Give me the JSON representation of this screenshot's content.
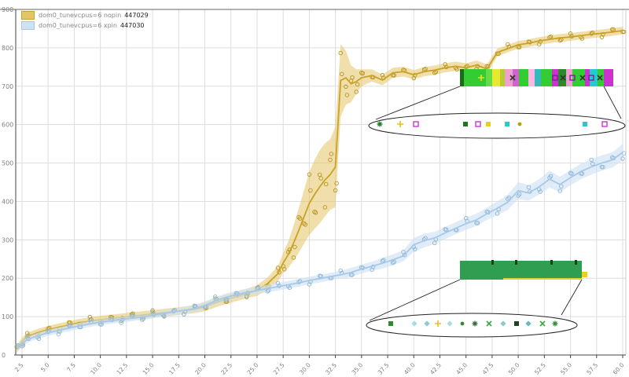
{
  "legend": {
    "items": [
      {
        "label": "dom0_tunevcpus=6 nopin",
        "value": "447029"
      },
      {
        "label": "dom0_tunevcpus=6 xpin",
        "value": "447030"
      }
    ]
  },
  "chart_data": {
    "type": "line",
    "title": "",
    "xlabel": "",
    "ylabel": "",
    "xlim": [
      1.9,
      60.3
    ],
    "ylim": [
      0,
      900
    ],
    "grid": true,
    "grid_color": "#dddddd",
    "axis_color": "#444444",
    "tick_label_color": "#808080",
    "x_ticks": [
      2.5,
      5.0,
      7.5,
      10.0,
      12.5,
      15.0,
      17.5,
      20.0,
      22.5,
      25.0,
      27.5,
      30.0,
      32.5,
      35.0,
      37.5,
      40.0,
      42.5,
      45.0,
      47.5,
      50.0,
      52.5,
      55.0,
      57.5,
      60.0
    ],
    "x_tick_labels": [
      "2.5",
      "5.0",
      "7.5",
      "10.0",
      "12.5",
      "15.0",
      "17.5",
      "20.0",
      "22.5",
      "25.0",
      "27.5",
      "30.0",
      "32.5",
      "35.0",
      "37.5",
      "40.0",
      "42.5",
      "45.0",
      "47.5",
      "50.0",
      "52.5",
      "55.0",
      "57.5",
      "60.0"
    ],
    "y_ticks": [
      0,
      100,
      200,
      300,
      400,
      500,
      600,
      700,
      800,
      900
    ],
    "marker_jitter": [
      5,
      -7,
      9,
      -4,
      2,
      -10,
      7,
      -3,
      11,
      -6,
      4,
      -9
    ],
    "series": [
      {
        "name": "dom0_tunevcpus=6 nopin",
        "id": "447029",
        "color": "#c9a227",
        "marker_color": "#b8931f",
        "band_color": "#e3c565",
        "band_opacity": 0.55,
        "x": [
          2,
          2.5,
          3,
          4,
          5,
          6,
          7,
          8,
          9,
          10,
          11,
          12,
          13,
          14,
          15,
          16,
          17,
          18,
          19,
          20,
          21,
          22,
          23,
          24,
          25,
          26,
          27,
          27.5,
          28,
          28.5,
          29,
          29.5,
          30,
          30.5,
          31,
          31.5,
          32,
          32.5,
          33,
          33.5,
          34,
          34.5,
          35,
          36,
          37,
          38,
          39,
          40,
          41,
          42,
          43,
          44,
          45,
          46,
          47,
          48,
          49,
          50,
          51,
          52,
          53,
          54,
          55,
          56,
          57,
          58,
          59,
          60
        ],
        "y": [
          15,
          35,
          48,
          58,
          66,
          72,
          78,
          84,
          88,
          92,
          95,
          98,
          101,
          104,
          107,
          110,
          113,
          116,
          119,
          126,
          136,
          145,
          152,
          160,
          168,
          186,
          212,
          240,
          262,
          292,
          325,
          360,
          395,
          418,
          438,
          456,
          470,
          490,
          715,
          722,
          706,
          712,
          722,
          728,
          716,
          735,
          738,
          730,
          738,
          742,
          748,
          752,
          748,
          755,
          745,
          788,
          798,
          808,
          812,
          818,
          822,
          826,
          828,
          832,
          835,
          838,
          841,
          845
        ],
        "w": [
          10,
          10,
          10,
          10,
          10,
          10,
          10,
          10,
          10,
          10,
          10,
          10,
          10,
          10,
          10,
          10,
          10,
          10,
          10,
          12,
          12,
          12,
          12,
          12,
          14,
          16,
          20,
          26,
          35,
          46,
          58,
          70,
          82,
          90,
          95,
          95,
          92,
          105,
          95,
          70,
          48,
          32,
          22,
          16,
          14,
          13,
          13,
          12,
          12,
          12,
          12,
          12,
          12,
          12,
          12,
          10,
          10,
          10,
          10,
          10,
          10,
          10,
          10,
          10,
          10,
          10,
          10,
          10
        ]
      },
      {
        "name": "dom0_tunevcpus=6 xpin",
        "id": "447030",
        "color": "#a6c9e8",
        "marker_color": "#8fb6da",
        "band_color": "#cfe2f3",
        "band_opacity": 0.65,
        "x": [
          2,
          2.5,
          3,
          4,
          5,
          6,
          7,
          8,
          9,
          10,
          11,
          12,
          13,
          14,
          15,
          16,
          17,
          18,
          19,
          20,
          21,
          22,
          23,
          24,
          25,
          26,
          27,
          28,
          29,
          30,
          31,
          32,
          33,
          34,
          35,
          36,
          37,
          38,
          39,
          40,
          41,
          42,
          43,
          44,
          45,
          46,
          47,
          48,
          49,
          50,
          51,
          52,
          53,
          54,
          55,
          56,
          57,
          58,
          59,
          60
        ],
        "y": [
          18,
          30,
          40,
          50,
          58,
          64,
          70,
          76,
          81,
          86,
          89,
          93,
          96,
          99,
          103,
          108,
          112,
          116,
          121,
          129,
          141,
          150,
          157,
          163,
          168,
          173,
          178,
          183,
          188,
          194,
          199,
          204,
          209,
          215,
          224,
          231,
          239,
          248,
          258,
          287,
          298,
          305,
          318,
          330,
          342,
          352,
          368,
          382,
          398,
          428,
          422,
          438,
          458,
          444,
          462,
          478,
          490,
          500,
          508,
          528
        ],
        "w": [
          8,
          8,
          8,
          8,
          8,
          8,
          8,
          8,
          8,
          8,
          8,
          8,
          8,
          8,
          8,
          8,
          10,
          10,
          10,
          10,
          10,
          10,
          10,
          10,
          10,
          10,
          10,
          10,
          10,
          10,
          10,
          10,
          10,
          12,
          12,
          12,
          14,
          14,
          14,
          18,
          18,
          16,
          16,
          16,
          16,
          16,
          16,
          18,
          20,
          22,
          20,
          20,
          22,
          20,
          20,
          20,
          20,
          20,
          20,
          22
        ]
      }
    ],
    "annotations": [
      {
        "name": "callout-nopin-detail",
        "strip": {
          "x": 585,
          "y": 88,
          "h": 22,
          "segments": [
            {
              "c": "#1a6b1a",
              "w": 5
            },
            {
              "c": "#33cc33",
              "w": 28
            },
            {
              "c": "#66dd44",
              "w": 8
            },
            {
              "c": "#e8e832",
              "w": 10
            },
            {
              "c": "#b8cc33",
              "w": 6
            },
            {
              "c": "#f0a0d0",
              "w": 10
            },
            {
              "c": "#cc66cc",
              "w": 8
            },
            {
              "c": "#33cc33",
              "w": 12
            },
            {
              "c": "#ffb6e6",
              "w": 8
            },
            {
              "c": "#33bbbb",
              "w": 8
            },
            {
              "c": "#33cc33",
              "w": 14
            },
            {
              "c": "#cc33cc",
              "w": 8
            },
            {
              "c": "#2a8a2a",
              "w": 10
            },
            {
              "c": "#f0a0d0",
              "w": 8
            },
            {
              "c": "#33cc33",
              "w": 16
            },
            {
              "c": "#cc33cc",
              "w": 6
            },
            {
              "c": "#22cccc",
              "w": 10
            },
            {
              "c": "#33cc33",
              "w": 8
            },
            {
              "c": "#cc33cc",
              "w": 12
            }
          ],
          "overlays": [
            {
              "t": "plus",
              "x": 612,
              "c": "#e8e020"
            },
            {
              "t": "x",
              "x": 652,
              "c": "#333333"
            },
            {
              "t": "osquare",
              "x": 706,
              "c": "#7a1fa2"
            },
            {
              "t": "x",
              "x": 716,
              "c": "#333333"
            },
            {
              "t": "osquare",
              "x": 728,
              "c": "#7a1fa2"
            },
            {
              "t": "x",
              "x": 741,
              "c": "#333333"
            },
            {
              "t": "osquare",
              "x": 752,
              "c": "#7a1fa2"
            },
            {
              "t": "x",
              "x": 763,
              "c": "#333333"
            }
          ]
        },
        "ellipse": {
          "cx": 632,
          "cy": 160,
          "rx": 163,
          "ry": 16
        },
        "markers": [
          {
            "x": 483,
            "t": "asterisk",
            "c": "#1a7a1a"
          },
          {
            "x": 509,
            "t": "plus",
            "c": "#e8c020"
          },
          {
            "x": 529,
            "t": "osquare",
            "c": "#cc33cc"
          },
          {
            "x": 592,
            "t": "square",
            "c": "#1a7a1a"
          },
          {
            "x": 608,
            "t": "osquare",
            "c": "#cc33cc"
          },
          {
            "x": 621,
            "t": "square",
            "c": "#e8d020"
          },
          {
            "x": 645,
            "t": "square",
            "c": "#22cccc"
          },
          {
            "x": 661,
            "t": "dot",
            "c": "#b8a000"
          },
          {
            "x": 744,
            "t": "square",
            "c": "#22cccc"
          },
          {
            "x": 769,
            "t": "osquare",
            "c": "#cc33cc"
          }
        ],
        "lines": [
          [
            585,
            110,
            478,
            152
          ],
          [
            768,
            110,
            790,
            151
          ]
        ]
      },
      {
        "name": "callout-xpin-detail",
        "strip": {
          "x": 585,
          "y": 332,
          "h": 24,
          "segments": [
            {
              "c": "#2f9e50",
              "w": 155
            }
          ],
          "ticks": [
            {
              "x": 625
            },
            {
              "x": 655
            },
            {
              "x": 700
            },
            {
              "x": 731
            }
          ],
          "underline": "#e8d020",
          "nub": "#e8d020"
        },
        "ellipse": {
          "cx": 600,
          "cy": 414,
          "rx": 134,
          "ry": 15
        },
        "markers": [
          {
            "x": 497,
            "t": "square",
            "c": "#2e8b2e"
          },
          {
            "x": 527,
            "t": "diamond",
            "c": "#aadddd"
          },
          {
            "x": 543,
            "t": "diamond",
            "c": "#88cccc"
          },
          {
            "x": 557,
            "t": "plus",
            "c": "#e8c020"
          },
          {
            "x": 572,
            "t": "diamond",
            "c": "#aadddd"
          },
          {
            "x": 588,
            "t": "dot",
            "c": "#2e8b2e"
          },
          {
            "x": 604,
            "t": "asterisk",
            "c": "#336633"
          },
          {
            "x": 622,
            "t": "x",
            "c": "#33aa33"
          },
          {
            "x": 640,
            "t": "diamond",
            "c": "#88cccc"
          },
          {
            "x": 657,
            "t": "square",
            "c": "#224422"
          },
          {
            "x": 672,
            "t": "diamond",
            "c": "#66bbbb"
          },
          {
            "x": 690,
            "t": "x",
            "c": "#33aa33"
          },
          {
            "x": 706,
            "t": "asterisk",
            "c": "#2e8b2e"
          }
        ],
        "lines": [
          [
            585,
            356,
            470,
            408
          ],
          [
            740,
            356,
            714,
            401
          ]
        ]
      }
    ]
  }
}
